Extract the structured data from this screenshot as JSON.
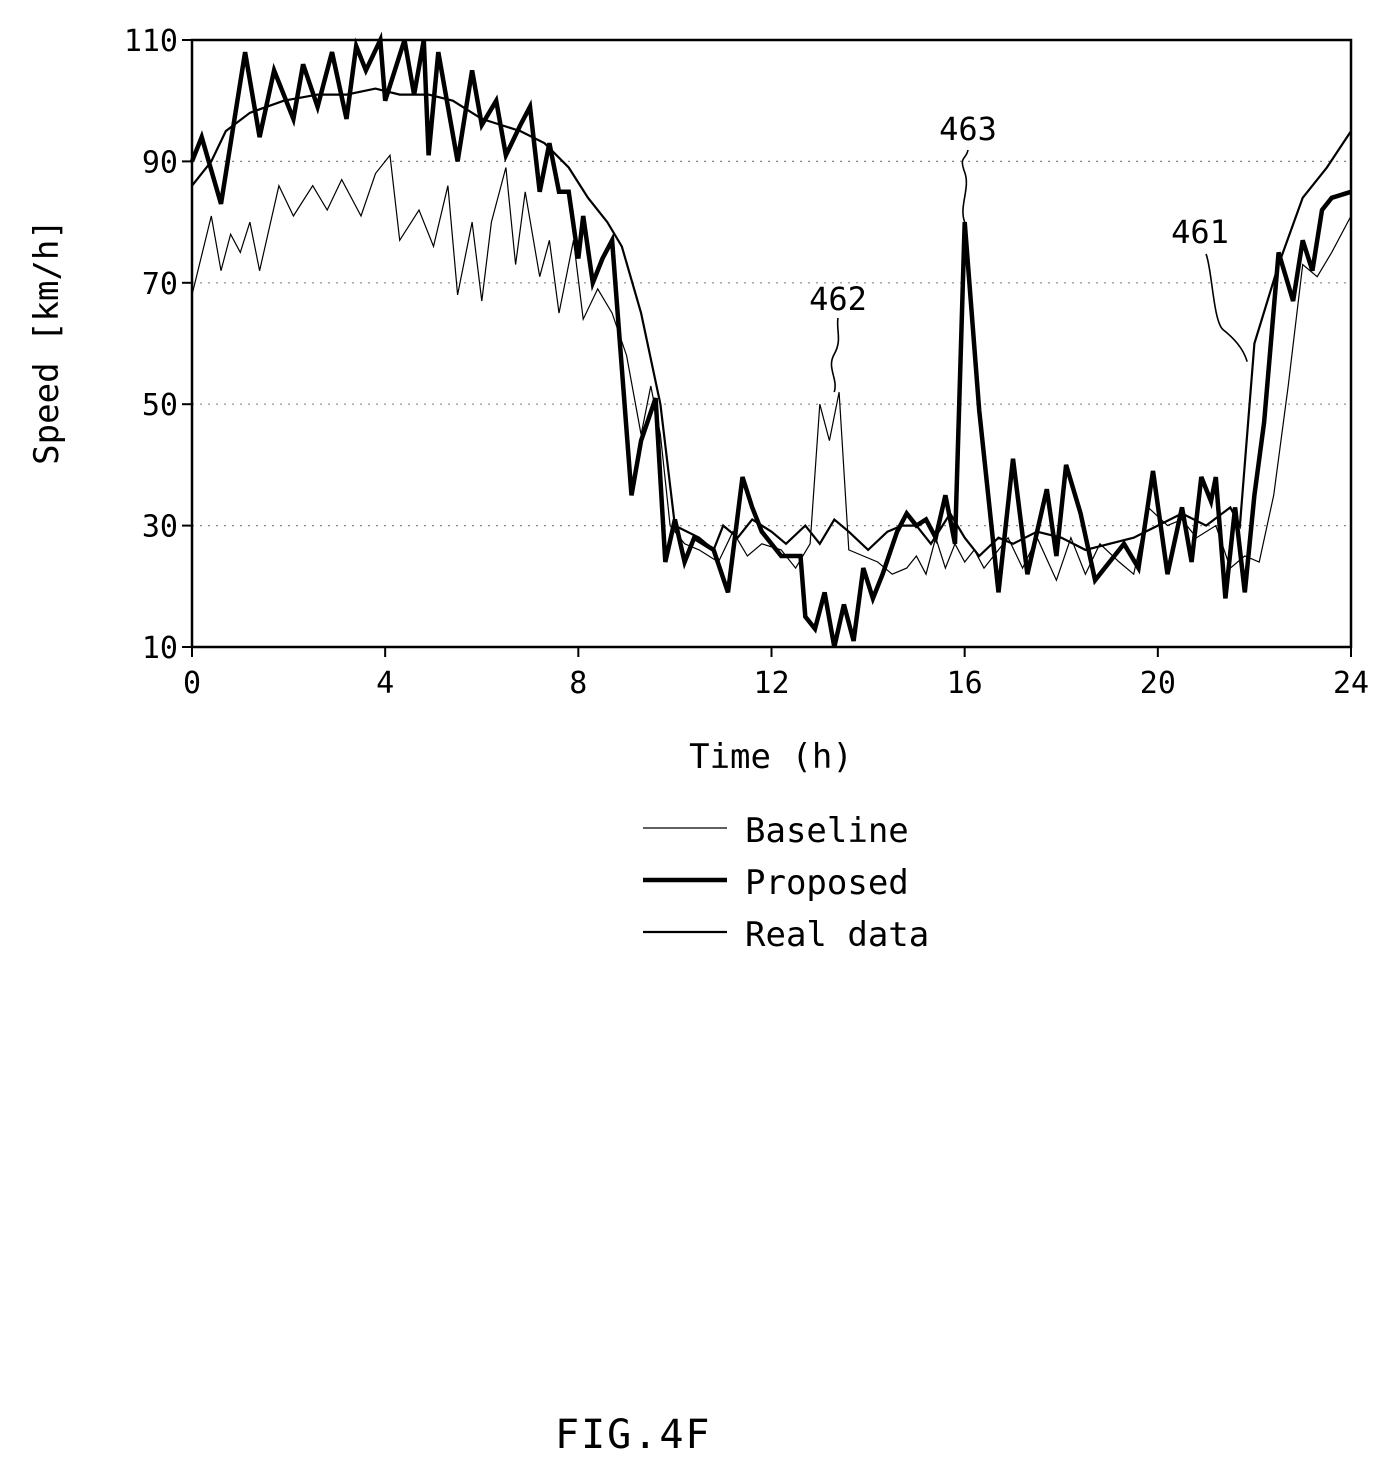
{
  "chart_data": {
    "type": "line",
    "xlabel": "Time (h)",
    "ylabel": "Speed [km/h]",
    "xlim": [
      0,
      24
    ],
    "ylim": [
      10,
      110
    ],
    "xticks": [
      0,
      4,
      8,
      12,
      16,
      20,
      24
    ],
    "yticks": [
      10,
      30,
      50,
      70,
      90,
      110
    ],
    "grid": "dotted horizontal",
    "legend_position": "below-center",
    "series": [
      {
        "name": "Baseline",
        "style": "thin",
        "x": [
          0,
          0.4,
          0.6,
          0.8,
          1.0,
          1.2,
          1.4,
          1.8,
          2.1,
          2.5,
          2.8,
          3.1,
          3.5,
          3.8,
          4.1,
          4.3,
          4.7,
          5.0,
          5.3,
          5.5,
          5.8,
          6.0,
          6.2,
          6.5,
          6.7,
          6.9,
          7.2,
          7.4,
          7.6,
          7.9,
          8.1,
          8.4,
          8.7,
          9.0,
          9.3,
          9.5,
          9.7,
          9.9,
          10.2,
          10.5,
          10.9,
          11.2,
          11.5,
          11.8,
          12.2,
          12.5,
          12.8,
          13.0,
          13.2,
          13.4,
          13.6,
          13.9,
          14.2,
          14.5,
          14.8,
          15.0,
          15.2,
          15.4,
          15.6,
          15.8,
          16.0,
          16.2,
          16.4,
          16.6,
          16.9,
          17.2,
          17.5,
          17.9,
          18.2,
          18.5,
          18.8,
          19.2,
          19.5,
          19.8,
          20.2,
          20.5,
          20.8,
          21.2,
          21.5,
          21.8,
          22.1,
          22.4,
          22.7,
          23.0,
          23.3,
          23.6,
          24
        ],
        "values": [
          68,
          81,
          72,
          78,
          75,
          80,
          72,
          86,
          81,
          86,
          82,
          87,
          81,
          88,
          91,
          77,
          82,
          76,
          86,
          68,
          80,
          67,
          80,
          89,
          73,
          85,
          71,
          77,
          65,
          77,
          64,
          69,
          65,
          58,
          45,
          53,
          45,
          30,
          27,
          26,
          24,
          29,
          25,
          27,
          26,
          23,
          27,
          50,
          44,
          52,
          26,
          25,
          24,
          22,
          23,
          25,
          22,
          28,
          23,
          27,
          24,
          26,
          23,
          25,
          28,
          23,
          28,
          21,
          28,
          22,
          27,
          24,
          22,
          33,
          30,
          31,
          28,
          30,
          23,
          25,
          24,
          35,
          53,
          73,
          71,
          75,
          81
        ]
      },
      {
        "name": "Proposed",
        "style": "thick",
        "x": [
          0,
          0.2,
          0.6,
          1.1,
          1.4,
          1.7,
          2.1,
          2.3,
          2.6,
          2.9,
          3.2,
          3.4,
          3.6,
          3.9,
          4.0,
          4.4,
          4.6,
          4.8,
          4.9,
          5.1,
          5.5,
          5.8,
          6.0,
          6.3,
          6.5,
          6.8,
          7.0,
          7.2,
          7.4,
          7.6,
          7.8,
          8.0,
          8.1,
          8.3,
          8.5,
          8.7,
          9.1,
          9.3,
          9.6,
          9.8,
          10.0,
          10.2,
          10.4,
          10.8,
          11.1,
          11.4,
          11.6,
          11.8,
          12.2,
          12.6,
          12.7,
          12.9,
          13.1,
          13.3,
          13.5,
          13.7,
          13.9,
          14.1,
          14.3,
          14.6,
          14.8,
          15.0,
          15.2,
          15.4,
          15.6,
          15.8,
          16.0,
          16.3,
          16.7,
          17.0,
          17.3,
          17.7,
          17.9,
          18.1,
          18.4,
          18.7,
          19.0,
          19.3,
          19.6,
          19.9,
          20.2,
          20.5,
          20.7,
          20.9,
          21.1,
          21.2,
          21.4,
          21.6,
          21.8,
          22.0,
          22.2,
          22.5,
          22.8,
          23.0,
          23.2,
          23.4,
          23.6,
          24
        ],
        "values": [
          90,
          94,
          83,
          108,
          94,
          105,
          97,
          106,
          99,
          108,
          97,
          109,
          105,
          110,
          100,
          110,
          101,
          110,
          91,
          108,
          90,
          105,
          96,
          100,
          91,
          96,
          99,
          85,
          93,
          85,
          85,
          74,
          81,
          70,
          74,
          77,
          35,
          44,
          51,
          24,
          31,
          24,
          28,
          26,
          19,
          38,
          33,
          29,
          25,
          25,
          15,
          13,
          19,
          10,
          17,
          11,
          23,
          18,
          22,
          29,
          32,
          30,
          31,
          28,
          35,
          27,
          80,
          49,
          19,
          41,
          22,
          36,
          25,
          40,
          32,
          21,
          24,
          27,
          23,
          39,
          22,
          33,
          24,
          38,
          34,
          38,
          18,
          33,
          19,
          35,
          47,
          75,
          67,
          77,
          72,
          82,
          84,
          85
        ]
      },
      {
        "name": "Real data",
        "style": "medium",
        "x": [
          0,
          0.4,
          0.7,
          1.2,
          1.9,
          2.6,
          3.2,
          3.8,
          4.3,
          4.9,
          5.4,
          6.0,
          6.4,
          6.8,
          7.3,
          7.8,
          8.2,
          8.6,
          8.9,
          9.3,
          9.7,
          10.0,
          10.5,
          10.8,
          11.0,
          11.3,
          11.6,
          12.0,
          12.3,
          12.7,
          13.0,
          13.3,
          13.6,
          14.0,
          14.4,
          14.7,
          15.0,
          15.3,
          15.7,
          16.0,
          16.3,
          16.7,
          17.0,
          17.5,
          18.0,
          18.5,
          19.0,
          19.5,
          20.0,
          20.5,
          21.0,
          21.5,
          21.7,
          22.0,
          22.5,
          23.0,
          23.5,
          24
        ],
        "values": [
          86,
          90,
          95,
          98,
          100,
          101,
          101,
          102,
          101,
          101,
          100,
          97,
          96,
          95,
          93,
          89,
          84,
          80,
          76,
          65,
          50,
          30,
          28,
          26,
          30,
          28,
          31,
          29,
          27,
          30,
          27,
          31,
          29,
          26,
          29,
          30,
          30,
          27,
          32,
          28,
          25,
          28,
          27,
          29,
          28,
          26,
          27,
          28,
          30,
          32,
          30,
          33,
          30,
          60,
          73,
          84,
          89,
          95
        ]
      }
    ],
    "annotations": [
      {
        "label": "461",
        "x": 21.85,
        "y": 57
      },
      {
        "label": "462",
        "x": 13.3,
        "y": 52
      },
      {
        "label": "463",
        "x": 16.0,
        "y": 80
      }
    ]
  },
  "figure_label": "FIG.4F"
}
